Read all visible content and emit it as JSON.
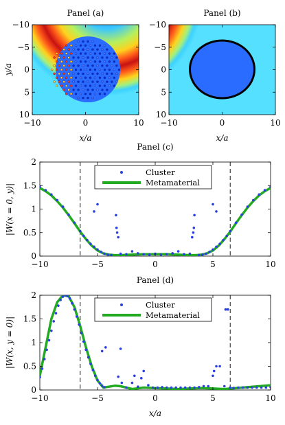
{
  "chart_data": [
    {
      "type": "heatmap",
      "title": "Panel (a)",
      "xlabel": "x/a",
      "ylabel": "y/a",
      "xlim": [
        -10,
        10
      ],
      "ylim": [
        -10,
        10
      ],
      "y_axis_reversed": true,
      "x_ticks": [
        "−10",
        "0",
        "10"
      ],
      "y_ticks": [
        "−10",
        "−5",
        "0",
        "5",
        "10"
      ],
      "colormap": "jet",
      "overlay": "cluster of small circular scatterers filling a disc of radius 6.5",
      "overlay_radius": 6.5
    },
    {
      "type": "heatmap",
      "title": "Panel (b)",
      "xlabel": "x/a",
      "ylabel": "",
      "xlim": [
        -10,
        10
      ],
      "ylim": [
        -10,
        10
      ],
      "y_axis_reversed": true,
      "x_ticks": [
        "−10",
        "0",
        "10"
      ],
      "y_ticks": [
        "−10",
        "−5",
        "0",
        "5",
        "10"
      ],
      "colormap": "jet",
      "overlay": "black circle of radius 6.5 (metamaterial boundary)",
      "overlay_radius": 6.5
    },
    {
      "type": "line",
      "title": "Panel (c)",
      "xlabel": "",
      "ylabel": "|W(x = 0, y)|",
      "xlim": [
        -10,
        10
      ],
      "ylim": [
        0,
        2
      ],
      "x_ticks": [
        "−10",
        "−5",
        "0",
        "5",
        "10"
      ],
      "y_ticks": [
        "0",
        "0.5",
        "1",
        "1.5",
        "2"
      ],
      "vlines": [
        -6.5,
        6.5
      ],
      "legend": {
        "location": "top-center",
        "entries": [
          "Cluster",
          "Metamaterial"
        ]
      },
      "series": [
        {
          "name": "Metamaterial",
          "style": "line",
          "color": "#22aa22",
          "x": [
            -10,
            -9.5,
            -9,
            -8.5,
            -8,
            -7.5,
            -7,
            -6.5,
            -6,
            -5.5,
            -5,
            -4.5,
            -4,
            -3.5,
            -3,
            -2,
            -1,
            0,
            1,
            2,
            3,
            3.5,
            4,
            4.5,
            5,
            5.5,
            6,
            6.5,
            7,
            7.5,
            8,
            8.5,
            9,
            9.5,
            10
          ],
          "y": [
            1.45,
            1.38,
            1.29,
            1.17,
            1.03,
            0.87,
            0.7,
            0.52,
            0.36,
            0.22,
            0.12,
            0.06,
            0.03,
            0.02,
            0.02,
            0.03,
            0.04,
            0.04,
            0.04,
            0.03,
            0.02,
            0.02,
            0.03,
            0.06,
            0.12,
            0.22,
            0.36,
            0.52,
            0.7,
            0.87,
            1.03,
            1.17,
            1.29,
            1.38,
            1.45
          ]
        },
        {
          "name": "Cluster",
          "style": "dots",
          "color": "#2a3fe0",
          "x": [
            -10,
            -9.5,
            -9,
            -8.5,
            -8,
            -7.5,
            -7,
            -6.5,
            -6.2,
            -5.9,
            -5.6,
            -5.3,
            -5.0,
            -4.7,
            -4.4,
            -4.1,
            -3.8,
            -5.3,
            -5.0,
            -3.4,
            -3.35,
            -3.3,
            -3.2,
            -3.0,
            -2.5,
            -2.0,
            -1.5,
            -1.0,
            -0.5,
            0.0,
            0.5,
            1.0,
            1.5,
            2.0,
            2.5,
            3.0,
            3.2,
            3.3,
            3.35,
            3.4,
            3.8,
            4.1,
            4.4,
            4.7,
            5.0,
            5.3,
            5.0,
            5.3,
            5.6,
            5.9,
            6.2,
            6.5,
            7,
            7.5,
            8,
            8.5,
            9,
            9.5,
            10
          ],
          "y": [
            1.47,
            1.4,
            1.31,
            1.19,
            1.05,
            0.88,
            0.71,
            0.53,
            0.43,
            0.34,
            0.26,
            0.2,
            0.14,
            0.09,
            0.05,
            0.03,
            0.02,
            0.95,
            1.1,
            0.87,
            0.6,
            0.5,
            0.4,
            0.05,
            0.04,
            0.1,
            0.06,
            0.04,
            0.03,
            0.05,
            0.03,
            0.04,
            0.06,
            0.1,
            0.04,
            0.05,
            0.4,
            0.5,
            0.6,
            0.87,
            0.02,
            0.03,
            0.05,
            0.09,
            0.14,
            0.2,
            1.1,
            0.95,
            0.26,
            0.34,
            0.43,
            0.53,
            0.71,
            0.88,
            1.05,
            1.19,
            1.31,
            1.4,
            1.47
          ]
        }
      ]
    },
    {
      "type": "line",
      "title": "Panel (d)",
      "xlabel": "x/a",
      "ylabel": "|W(x, y = 0)|",
      "xlim": [
        -10,
        10
      ],
      "ylim": [
        0,
        2
      ],
      "x_ticks": [
        "−10",
        "−5",
        "0",
        "5",
        "10"
      ],
      "y_ticks": [
        "0",
        "0.5",
        "1",
        "1.5",
        "2"
      ],
      "vlines": [
        -6.5,
        6.5
      ],
      "legend": {
        "location": "top-center",
        "entries": [
          "Cluster",
          "Metamaterial"
        ]
      },
      "series": [
        {
          "name": "Metamaterial",
          "style": "line",
          "color": "#22aa22",
          "x": [
            -10,
            -9.5,
            -9,
            -8.5,
            -8,
            -7.5,
            -7,
            -6.5,
            -6,
            -5.5,
            -5,
            -4.5,
            -4,
            -3.5,
            -3,
            -2.5,
            -2,
            -1,
            0,
            1,
            2,
            3,
            4,
            5,
            6,
            7,
            8,
            9,
            10
          ],
          "y": [
            0.3,
            0.9,
            1.5,
            1.85,
            2.0,
            1.98,
            1.75,
            1.35,
            0.9,
            0.5,
            0.2,
            0.05,
            0.07,
            0.09,
            0.08,
            0.05,
            0.02,
            0.05,
            0.04,
            0.03,
            0.02,
            0.03,
            0.04,
            0.03,
            0.02,
            0.04,
            0.06,
            0.08,
            0.1
          ]
        },
        {
          "name": "Cluster",
          "style": "dots",
          "color": "#2a3fe0",
          "x": [
            -10,
            -9.8,
            -9.6,
            -9.4,
            -9.2,
            -9,
            -8.8,
            -8.6,
            -8.4,
            -8.2,
            -8,
            -7.8,
            -7.6,
            -7.4,
            -7.2,
            -7,
            -6.8,
            -6.6,
            -6.4,
            -6.2,
            -6,
            -5.8,
            -5.6,
            -5.4,
            -5.2,
            -5.0,
            -4.8,
            -4.6,
            -4.4,
            -4.6,
            -4.3,
            -3.2,
            -2.9,
            -3.0,
            -2.5,
            -2.0,
            -1.8,
            -1.5,
            -1.2,
            -1.0,
            -0.6,
            -0.2,
            0.2,
            0.6,
            1.0,
            1.4,
            1.8,
            2.2,
            2.6,
            3.0,
            3.4,
            3.8,
            4.2,
            4.6,
            5.0,
            5.1,
            5.3,
            5.6,
            6.0,
            6.1,
            6.3,
            6.5,
            6.8,
            7.2,
            7.6,
            8.0,
            8.4,
            8.8,
            9.2,
            9.6,
            10
          ],
          "y": [
            0.27,
            0.45,
            0.65,
            0.85,
            1.05,
            1.25,
            1.45,
            1.62,
            1.78,
            1.9,
            1.97,
            2.0,
            1.98,
            1.93,
            1.83,
            1.7,
            1.55,
            1.38,
            1.2,
            1.02,
            0.85,
            0.69,
            0.55,
            0.42,
            0.3,
            0.21,
            0.14,
            0.09,
            0.06,
            0.82,
            0.9,
            0.28,
            0.15,
            0.87,
            0.05,
            0.15,
            0.3,
            0.07,
            0.25,
            0.4,
            0.1,
            0.05,
            0.05,
            0.06,
            0.05,
            0.05,
            0.05,
            0.05,
            0.05,
            0.05,
            0.05,
            0.06,
            0.08,
            0.08,
            0.3,
            0.4,
            0.5,
            0.5,
            0.08,
            1.7,
            1.7,
            0.05,
            0.04,
            0.05,
            0.05,
            0.05,
            0.05,
            0.05,
            0.05,
            0.05,
            0.06
          ]
        }
      ]
    }
  ]
}
